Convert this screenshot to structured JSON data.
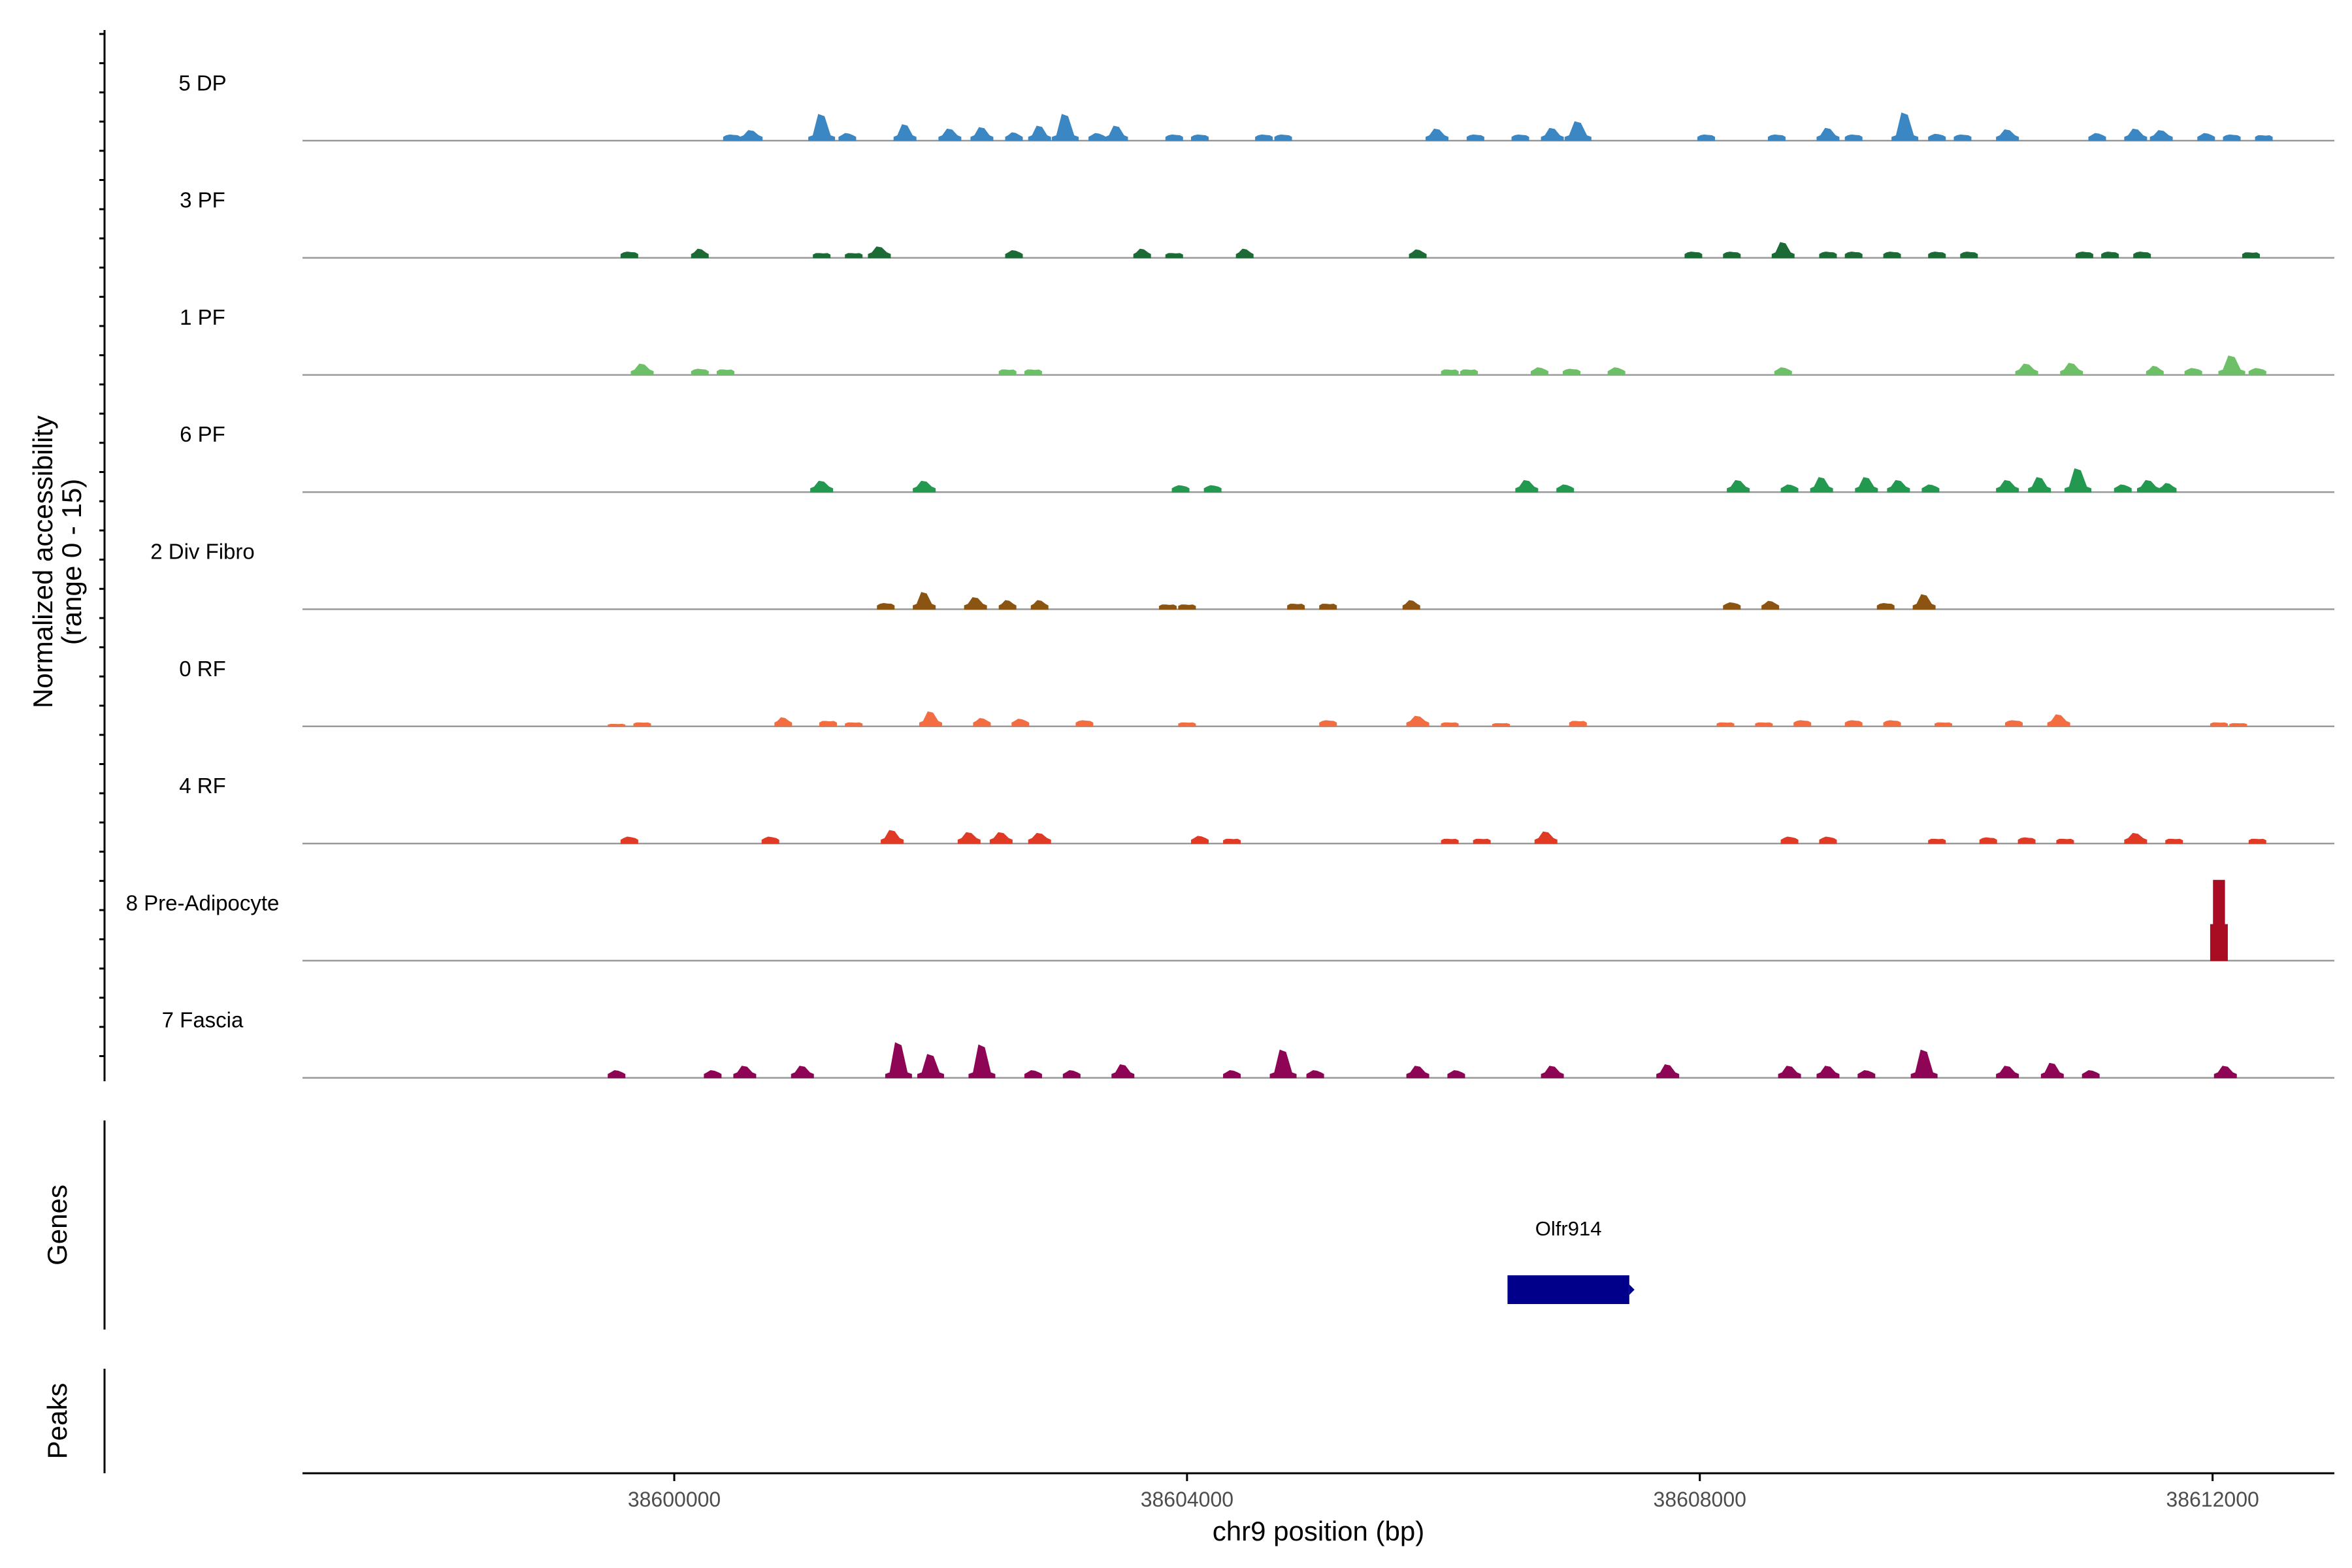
{
  "chart_data": {
    "type": "area",
    "title": "",
    "ylabel": [
      "Normalized accessibility",
      "(range 0 - 15)"
    ],
    "xlabel": "chr9 position (bp)",
    "xlim": [
      38597100,
      38612950
    ],
    "ylim": [
      0,
      15
    ],
    "xticks": [
      38600000,
      38604000,
      38608000,
      38612000
    ],
    "xtick_labels": [
      "38600000",
      "38604000",
      "38608000",
      "38612000"
    ],
    "gene_panel_label": "Genes",
    "peak_panel_label": "Peaks",
    "genes": [
      {
        "name": "Olfr914",
        "start": 38606500,
        "end": 38607450,
        "color": "#00008b"
      }
    ],
    "peaks": [],
    "series": [
      {
        "name": "5 DP",
        "color": "#3a87c4",
        "peaks": [
          [
            38600450,
            0.8
          ],
          [
            38600600,
            1.4
          ],
          [
            38601150,
            3.6
          ],
          [
            38601350,
            1.0
          ],
          [
            38601800,
            2.2
          ],
          [
            38602150,
            1.6
          ],
          [
            38602400,
            1.8
          ],
          [
            38602650,
            1.1
          ],
          [
            38602850,
            2.0
          ],
          [
            38603050,
            3.6
          ],
          [
            38603300,
            1.0
          ],
          [
            38603450,
            2.0
          ],
          [
            38603900,
            0.8
          ],
          [
            38604100,
            0.8
          ],
          [
            38604600,
            0.8
          ],
          [
            38604750,
            0.8
          ],
          [
            38605950,
            1.6
          ],
          [
            38606250,
            0.8
          ],
          [
            38606600,
            0.8
          ],
          [
            38606850,
            1.7
          ],
          [
            38607050,
            2.6
          ],
          [
            38608050,
            0.8
          ],
          [
            38608600,
            0.8
          ],
          [
            38609000,
            1.7
          ],
          [
            38609200,
            0.8
          ],
          [
            38609600,
            3.8
          ],
          [
            38609850,
            0.9
          ],
          [
            38610050,
            0.8
          ],
          [
            38610400,
            1.5
          ],
          [
            38611100,
            1.0
          ],
          [
            38611400,
            1.6
          ],
          [
            38611600,
            1.4
          ],
          [
            38611950,
            1.0
          ],
          [
            38612150,
            0.8
          ],
          [
            38612400,
            0.7
          ]
        ]
      },
      {
        "name": "3 PF",
        "color": "#1c6b37",
        "peaks": [
          [
            38599650,
            0.8
          ],
          [
            38600200,
            1.2
          ],
          [
            38601150,
            0.6
          ],
          [
            38601400,
            0.6
          ],
          [
            38601600,
            1.5
          ],
          [
            38602650,
            1.0
          ],
          [
            38603650,
            1.2
          ],
          [
            38603900,
            0.6
          ],
          [
            38604450,
            1.2
          ],
          [
            38605800,
            1.1
          ],
          [
            38607950,
            0.8
          ],
          [
            38608250,
            0.8
          ],
          [
            38608650,
            2.1
          ],
          [
            38609000,
            0.8
          ],
          [
            38609200,
            0.8
          ],
          [
            38609500,
            0.8
          ],
          [
            38609850,
            0.8
          ],
          [
            38610100,
            0.8
          ],
          [
            38611000,
            0.8
          ],
          [
            38611200,
            0.8
          ],
          [
            38611450,
            0.8
          ],
          [
            38612300,
            0.7
          ]
        ]
      },
      {
        "name": "1 PF",
        "color": "#6ec068",
        "peaks": [
          [
            38599750,
            1.5
          ],
          [
            38600200,
            0.8
          ],
          [
            38600400,
            0.7
          ],
          [
            38602600,
            0.7
          ],
          [
            38602800,
            0.7
          ],
          [
            38606050,
            0.7
          ],
          [
            38606200,
            0.7
          ],
          [
            38606750,
            1.0
          ],
          [
            38607000,
            0.8
          ],
          [
            38607350,
            1.0
          ],
          [
            38608650,
            1.0
          ],
          [
            38610550,
            1.5
          ],
          [
            38610900,
            1.6
          ],
          [
            38611550,
            1.2
          ],
          [
            38611850,
            0.9
          ],
          [
            38612150,
            2.6
          ],
          [
            38612350,
            0.9
          ]
        ]
      },
      {
        "name": "6 PF",
        "color": "#23984f",
        "peaks": [
          [
            38601150,
            1.5
          ],
          [
            38601950,
            1.5
          ],
          [
            38603950,
            0.9
          ],
          [
            38604200,
            0.9
          ],
          [
            38606650,
            1.6
          ],
          [
            38606950,
            1.0
          ],
          [
            38608300,
            1.6
          ],
          [
            38608700,
            1.0
          ],
          [
            38608950,
            2.0
          ],
          [
            38609300,
            2.0
          ],
          [
            38609550,
            1.6
          ],
          [
            38609800,
            1.0
          ],
          [
            38610400,
            1.6
          ],
          [
            38610650,
            2.0
          ],
          [
            38610950,
            3.2
          ],
          [
            38611300,
            1.0
          ],
          [
            38611500,
            1.6
          ],
          [
            38611650,
            1.2
          ]
        ]
      },
      {
        "name": "2 Div Fibro",
        "color": "#8b5412",
        "peaks": [
          [
            38601650,
            0.8
          ],
          [
            38601950,
            2.3
          ],
          [
            38602350,
            1.6
          ],
          [
            38602600,
            1.2
          ],
          [
            38602850,
            1.2
          ],
          [
            38603850,
            0.6
          ],
          [
            38604000,
            0.6
          ],
          [
            38604850,
            0.7
          ],
          [
            38605100,
            0.7
          ],
          [
            38605750,
            1.2
          ],
          [
            38608250,
            0.9
          ],
          [
            38608550,
            1.1
          ],
          [
            38609450,
            0.8
          ],
          [
            38609750,
            2.0
          ]
        ]
      },
      {
        "name": "0 RF",
        "color": "#f26d41",
        "peaks": [
          [
            38599550,
            0.3
          ],
          [
            38599750,
            0.5
          ],
          [
            38600850,
            1.2
          ],
          [
            38601200,
            0.7
          ],
          [
            38601400,
            0.5
          ],
          [
            38602000,
            2.0
          ],
          [
            38602400,
            1.1
          ],
          [
            38602700,
            1.0
          ],
          [
            38603200,
            0.8
          ],
          [
            38604000,
            0.5
          ],
          [
            38605100,
            0.8
          ],
          [
            38605800,
            1.4
          ],
          [
            38606050,
            0.5
          ],
          [
            38606450,
            0.4
          ],
          [
            38607050,
            0.7
          ],
          [
            38608200,
            0.5
          ],
          [
            38608500,
            0.5
          ],
          [
            38608800,
            0.8
          ],
          [
            38609200,
            0.8
          ],
          [
            38609500,
            0.8
          ],
          [
            38609900,
            0.5
          ],
          [
            38610450,
            0.8
          ],
          [
            38610800,
            1.6
          ],
          [
            38612050,
            0.5
          ],
          [
            38612200,
            0.4
          ]
        ]
      },
      {
        "name": "4 RF",
        "color": "#e03a24",
        "peaks": [
          [
            38599650,
            0.9
          ],
          [
            38600750,
            0.9
          ],
          [
            38601700,
            1.8
          ],
          [
            38602300,
            1.5
          ],
          [
            38602550,
            1.5
          ],
          [
            38602850,
            1.4
          ],
          [
            38604100,
            1.0
          ],
          [
            38604350,
            0.6
          ],
          [
            38606050,
            0.6
          ],
          [
            38606300,
            0.6
          ],
          [
            38606800,
            1.6
          ],
          [
            38608700,
            0.9
          ],
          [
            38609000,
            0.9
          ],
          [
            38609850,
            0.6
          ],
          [
            38610250,
            0.8
          ],
          [
            38610550,
            0.8
          ],
          [
            38610850,
            0.6
          ],
          [
            38611400,
            1.4
          ],
          [
            38611700,
            0.6
          ],
          [
            38612350,
            0.6
          ]
        ]
      },
      {
        "name": "8 Pre-Adipocyte",
        "color": "#a80d23",
        "peaks": [
          [
            38612050,
            11.0
          ]
        ]
      },
      {
        "name": "7 Fascia",
        "color": "#8e0555",
        "peaks": [
          [
            38599550,
            1.0
          ],
          [
            38600300,
            1.0
          ],
          [
            38600550,
            1.6
          ],
          [
            38601000,
            1.6
          ],
          [
            38601750,
            4.8
          ],
          [
            38602000,
            3.2
          ],
          [
            38602400,
            4.5
          ],
          [
            38602800,
            1.0
          ],
          [
            38603100,
            1.0
          ],
          [
            38603500,
            1.8
          ],
          [
            38604350,
            1.0
          ],
          [
            38604750,
            3.8
          ],
          [
            38605000,
            1.0
          ],
          [
            38605800,
            1.6
          ],
          [
            38606100,
            1.0
          ],
          [
            38606850,
            1.6
          ],
          [
            38607750,
            1.8
          ],
          [
            38608700,
            1.6
          ],
          [
            38609000,
            1.6
          ],
          [
            38609300,
            1.0
          ],
          [
            38609750,
            3.8
          ],
          [
            38610400,
            1.6
          ],
          [
            38610750,
            2.0
          ],
          [
            38611050,
            1.0
          ],
          [
            38612100,
            1.6
          ]
        ]
      }
    ]
  }
}
